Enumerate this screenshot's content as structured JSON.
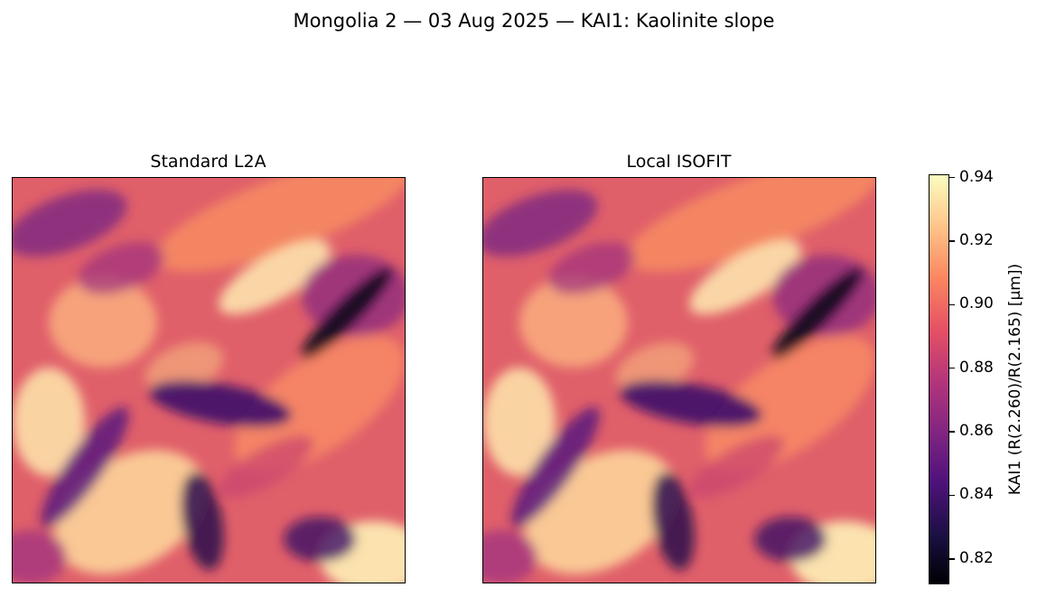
{
  "figure": {
    "suptitle": "Mongolia 2 — 03 Aug 2025 — KAI1: Kaolinite slope"
  },
  "chart_data": {
    "type": "heatmap",
    "title": "Mongolia 2 — 03 Aug 2025 — KAI1: Kaolinite slope",
    "panels": [
      {
        "title": "Standard L2A"
      },
      {
        "title": "Local ISOFIT"
      }
    ],
    "colormap": "magma",
    "colorbar": {
      "label": "KAI1  (R(2.260)/R(2.165)  [µm])",
      "range": [
        0.812,
        0.941
      ],
      "ticks": [
        0.82,
        0.84,
        0.86,
        0.88,
        0.9,
        0.92,
        0.94
      ],
      "tick_labels": [
        "0.82",
        "0.84",
        "0.86",
        "0.88",
        "0.90",
        "0.92",
        "0.94"
      ]
    },
    "grid": false,
    "xlabel": "",
    "ylabel": ""
  }
}
